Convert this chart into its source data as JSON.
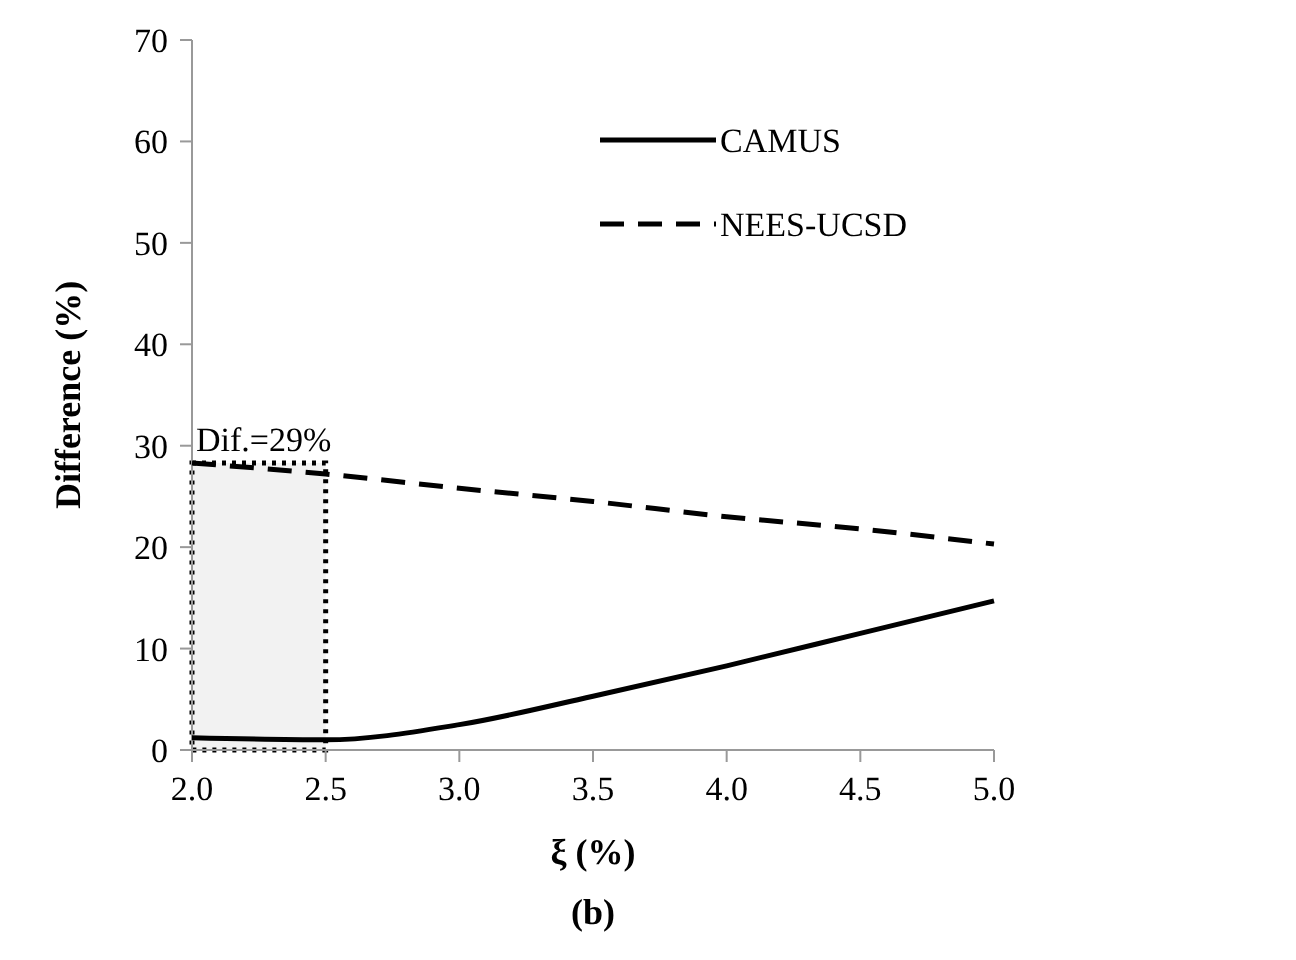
{
  "chart_data": {
    "type": "line",
    "title": "(b)",
    "xlabel": "ξ (%)",
    "ylabel": "Difference (%)",
    "x": [
      2.0,
      2.5,
      3.0,
      3.5,
      4.0,
      4.5,
      5.0
    ],
    "series": [
      {
        "name": "CAMUS",
        "color": "#000000",
        "line_style": "solid",
        "values": [
          1.2,
          1.0,
          2.5,
          5.3,
          8.3,
          11.5,
          14.7
        ]
      },
      {
        "name": "NEES-UCSD",
        "color": "#000000",
        "line_style": "dashed",
        "values": [
          28.3,
          27.2,
          25.8,
          24.5,
          23.0,
          21.8,
          20.3
        ]
      }
    ],
    "xlim": [
      2.0,
      5.0
    ],
    "xticks": [
      {
        "value": 2.0,
        "label": "2.0"
      },
      {
        "value": 2.5,
        "label": "2.5"
      },
      {
        "value": 3.0,
        "label": "3.0"
      },
      {
        "value": 3.5,
        "label": "3.5"
      },
      {
        "value": 4.0,
        "label": "4.0"
      },
      {
        "value": 4.5,
        "label": "4.5"
      },
      {
        "value": 5.0,
        "label": "5.0"
      }
    ],
    "ylim": [
      0,
      70
    ],
    "yticks": [
      0,
      10,
      20,
      30,
      40,
      50,
      60,
      70
    ],
    "bands": [
      {
        "axis": "x",
        "from": 2.0,
        "to": 2.5,
        "label": "Dif.=29%",
        "color": "#f2f2f2"
      }
    ],
    "grid": false,
    "marker": "none",
    "legend": "top right"
  }
}
